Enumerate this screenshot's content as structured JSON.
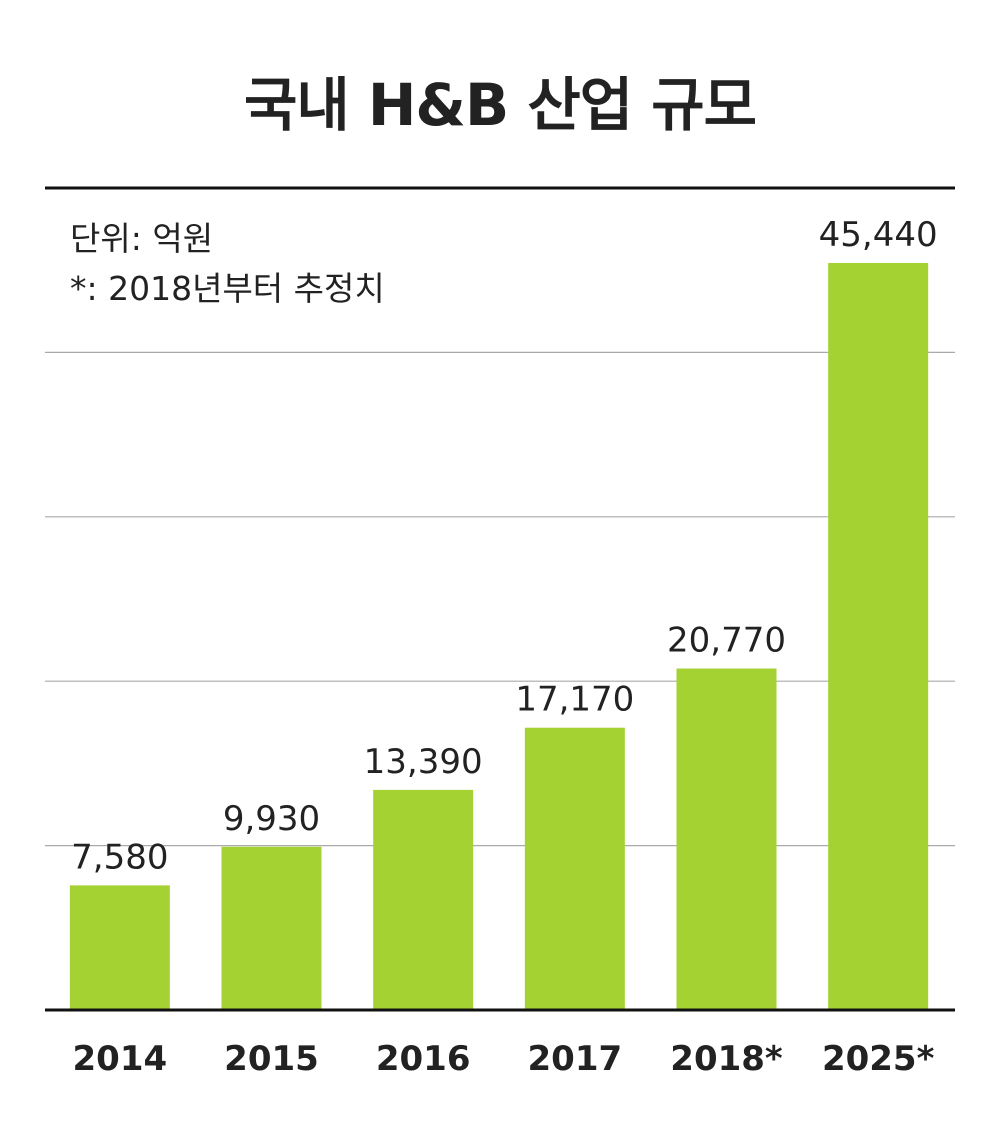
{
  "chart_data": {
    "type": "bar",
    "title": "국내 H&B 산업 규모",
    "notes": [
      "단위: 억원",
      "*: 2018년부터 추정치"
    ],
    "categories": [
      "2014",
      "2015",
      "2016",
      "2017",
      "2018*",
      "2025*"
    ],
    "values": [
      7580,
      9930,
      13390,
      17170,
      20770,
      45440
    ],
    "value_labels": [
      "7,580",
      "9,930",
      "13,390",
      "17,170",
      "20,770",
      "45,440"
    ],
    "xlabel": "",
    "ylabel": "",
    "ylim": [
      0,
      50000
    ],
    "grid": true,
    "legend": "none",
    "colors": {
      "bar": "#a4d233",
      "text": "#222222",
      "axis": "#111111",
      "grid": "#aaaaaa"
    }
  }
}
